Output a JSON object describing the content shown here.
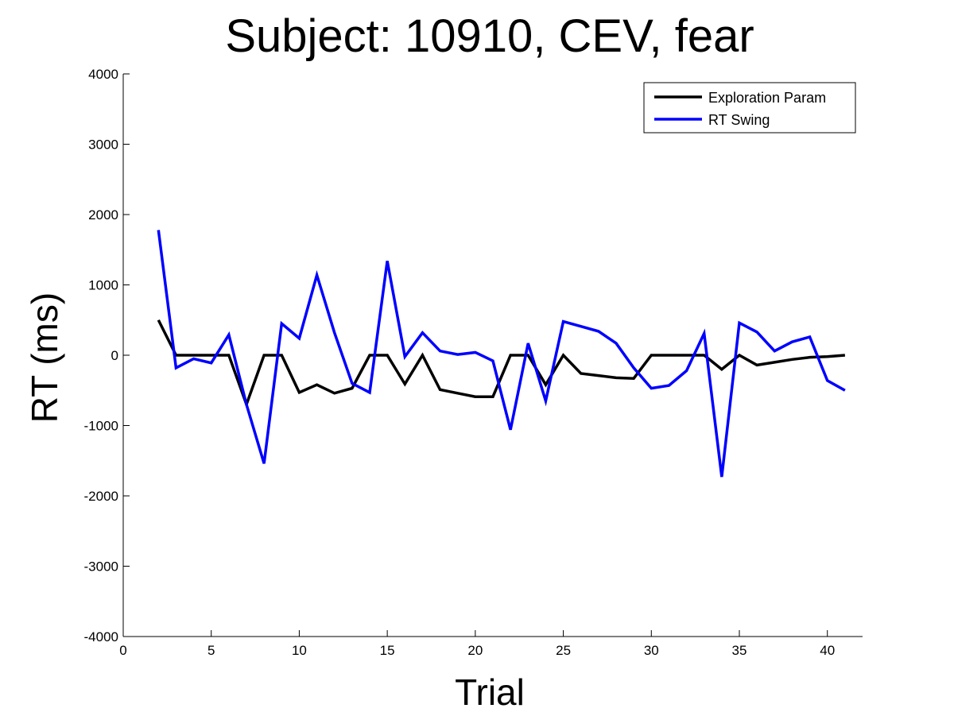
{
  "chart_data": {
    "type": "line",
    "title": "Subject: 10910, CEV, fear",
    "xlabel": "Trial",
    "ylabel": "RT (ms)",
    "xlim": [
      0,
      42
    ],
    "ylim": [
      -4000,
      4000
    ],
    "xticks": [
      0,
      5,
      10,
      15,
      20,
      25,
      30,
      35,
      40
    ],
    "yticks": [
      -4000,
      -3000,
      -2000,
      -1000,
      0,
      1000,
      2000,
      3000,
      4000
    ],
    "legend_position": "top-right",
    "grid": false,
    "x": [
      2,
      3,
      4,
      5,
      6,
      7,
      8,
      9,
      10,
      11,
      12,
      13,
      14,
      15,
      16,
      17,
      18,
      19,
      20,
      21,
      22,
      23,
      24,
      25,
      26,
      27,
      28,
      29,
      30,
      31,
      32,
      33,
      34,
      35,
      36,
      37,
      38,
      39,
      40,
      41
    ],
    "series": [
      {
        "name": "Exploration Param",
        "color": "#000000",
        "values": [
          500,
          0,
          0,
          0,
          0,
          -700,
          0,
          0,
          -530,
          -420,
          -540,
          -470,
          0,
          0,
          -410,
          0,
          -490,
          -540,
          -590,
          -590,
          0,
          0,
          -420,
          0,
          -260,
          -290,
          -320,
          -330,
          0,
          0,
          0,
          0,
          -200,
          0,
          -140,
          -100,
          -60,
          -30,
          -20,
          0
        ]
      },
      {
        "name": "RT Swing",
        "color": "#0000ff",
        "values": [
          1780,
          -180,
          -50,
          -110,
          290,
          -700,
          -1540,
          450,
          240,
          1140,
          320,
          -400,
          -530,
          1340,
          -20,
          320,
          60,
          10,
          40,
          -80,
          -1060,
          170,
          -650,
          480,
          410,
          340,
          170,
          -180,
          -470,
          -430,
          -220,
          310,
          -1730,
          460,
          330,
          60,
          190,
          260,
          -360,
          -500
        ]
      }
    ]
  }
}
